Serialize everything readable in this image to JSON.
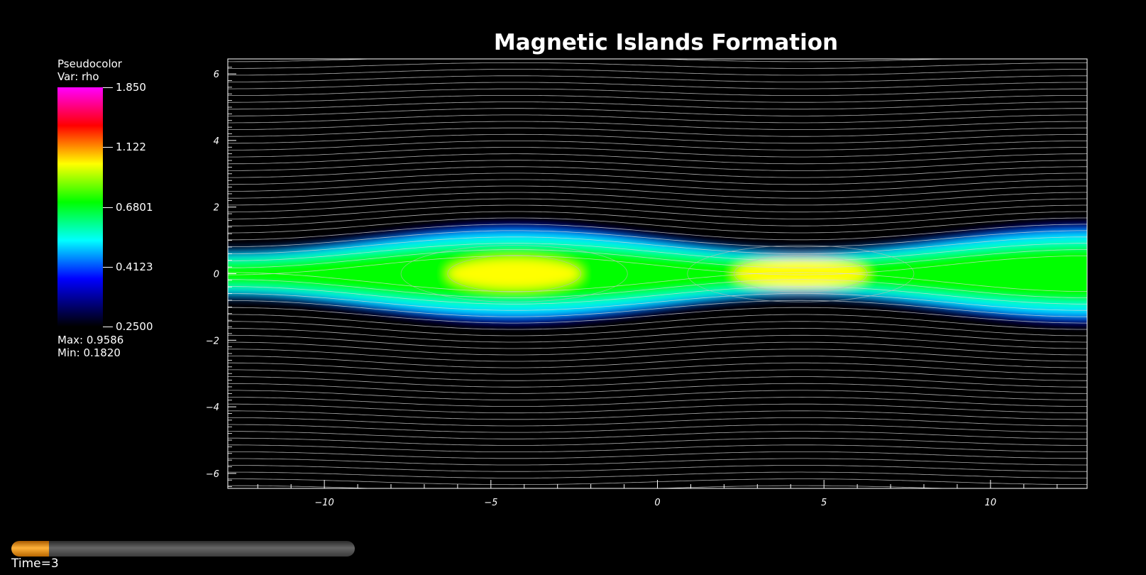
{
  "chart_data": {
    "type": "heatmap",
    "title": "Magnetic Islands Formation",
    "xlim": [
      -12.9,
      12.9
    ],
    "ylim": [
      -6.45,
      6.45
    ],
    "x_ticks": [
      -10,
      -5,
      0,
      5,
      10
    ],
    "y_ticks": [
      -6,
      -4,
      -2,
      0,
      2,
      4,
      6
    ],
    "x_tick_labels": [
      "−10",
      "−5",
      "0",
      "5",
      "10"
    ],
    "y_tick_labels": [
      "−6",
      "−4",
      "−2",
      "0",
      "2",
      "4",
      "6"
    ],
    "island_centers_x": [
      -4.3,
      4.3
    ],
    "island_period": 17.2,
    "island_peak_value": 0.9586,
    "background_value": 0.182,
    "contour_lines": "on",
    "colormap": [
      "#000000",
      "#0000ff",
      "#00ffff",
      "#00ff00",
      "#ffff00",
      "#ff0000",
      "#ff00ff"
    ]
  },
  "legend": {
    "plot_type": "Pseudocolor",
    "var": "Var: rho",
    "ticks": [
      {
        "value": 1.85,
        "label": "1.850"
      },
      {
        "value": 1.122,
        "label": "1.122"
      },
      {
        "value": 0.6801,
        "label": "0.6801"
      },
      {
        "value": 0.4123,
        "label": "0.4123"
      },
      {
        "value": 0.25,
        "label": "0.2500"
      }
    ],
    "max_label": "Max:  0.9586",
    "min_label": "Min:  0.1820"
  },
  "time": {
    "label": "Time=3",
    "progress": 0.11
  }
}
